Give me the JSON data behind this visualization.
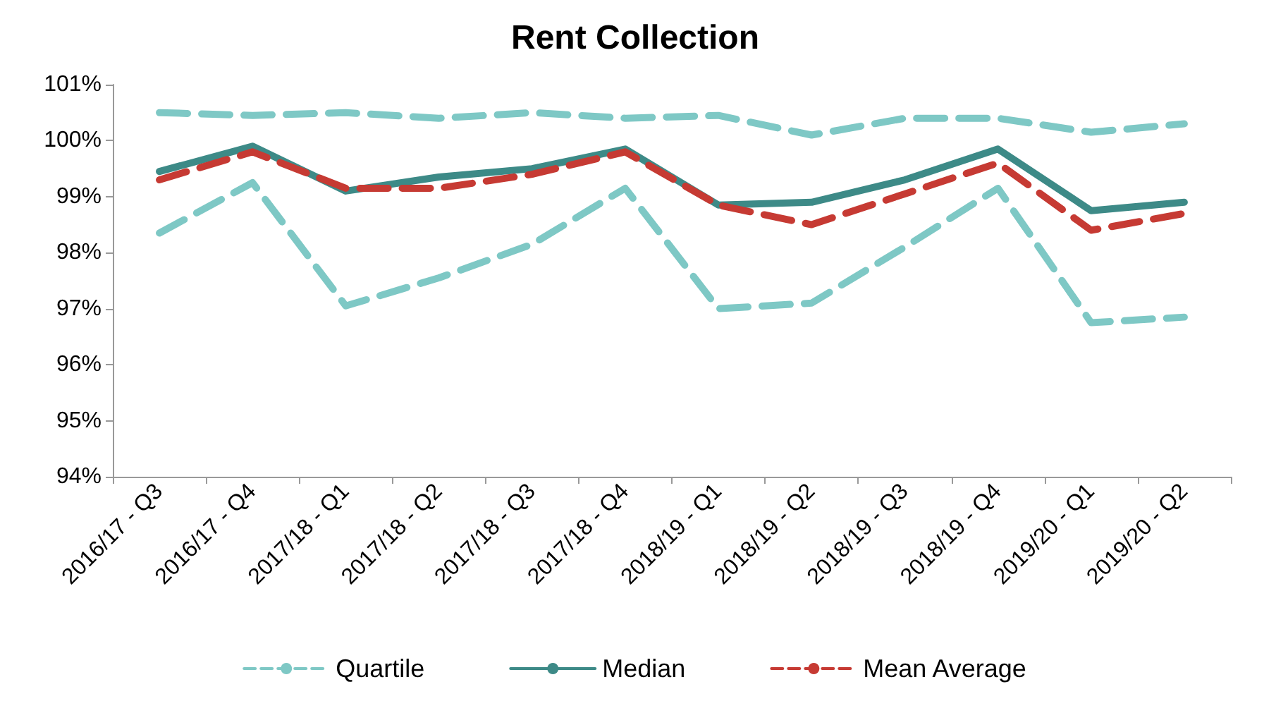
{
  "chart_data": {
    "type": "line",
    "title": "Rent Collection",
    "categories": [
      "2016/17 - Q3",
      "2016/17 - Q4",
      "2017/18 - Q1",
      "2017/18 - Q2",
      "2017/18 - Q3",
      "2017/18 - Q4",
      "2018/19 - Q1",
      "2018/19 - Q2",
      "2018/19 - Q3",
      "2018/19 - Q4",
      "2019/20 - Q1",
      "2019/20 - Q2"
    ],
    "series": [
      {
        "name": "Quartile",
        "color": "#7ec8c5",
        "line_style": "dashed",
        "values": [
          98.35,
          99.25,
          97.05,
          97.55,
          98.15,
          99.15,
          97.0,
          97.1,
          98.1,
          99.15,
          96.75,
          96.85
        ]
      },
      {
        "color": "#7ec8c5",
        "line_style": "dashed",
        "values": [
          100.5,
          100.45,
          100.5,
          100.4,
          100.5,
          100.4,
          100.45,
          100.1,
          100.4,
          100.4,
          100.15,
          100.3
        ]
      },
      {
        "name": "Median",
        "color": "#3d8a87",
        "line_style": "solid",
        "values": [
          99.45,
          99.9,
          99.1,
          99.35,
          99.5,
          99.85,
          98.85,
          98.9,
          99.3,
          99.85,
          98.75,
          98.9
        ]
      },
      {
        "name": "Mean Average",
        "color": "#c63a33",
        "line_style": "dashed",
        "values": [
          99.3,
          99.8,
          99.15,
          99.15,
          99.4,
          99.8,
          98.85,
          98.5,
          99.05,
          99.6,
          98.4,
          98.7
        ]
      }
    ],
    "ylim": [
      94,
      101
    ],
    "yticks": [
      {
        "value": 94,
        "label": "94%"
      },
      {
        "value": 95,
        "label": "95%"
      },
      {
        "value": 96,
        "label": "96%"
      },
      {
        "value": 97,
        "label": "97%"
      },
      {
        "value": 98,
        "label": "98%"
      },
      {
        "value": 99,
        "label": "99%"
      },
      {
        "value": 100,
        "label": "100%"
      },
      {
        "value": 101,
        "label": "101%"
      }
    ],
    "grid": false,
    "legend": "bottom",
    "marker": "none"
  }
}
